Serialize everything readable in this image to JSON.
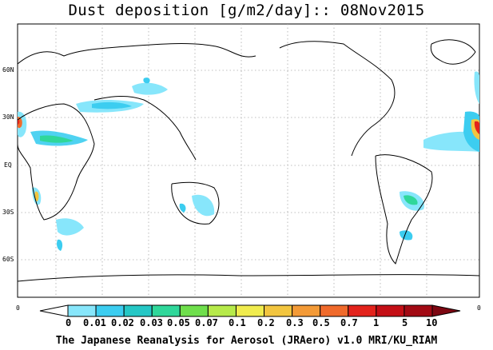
{
  "title": "Dust deposition [g/m2/day]:: 08Nov2015",
  "lat_labels": [
    "60N",
    "30N",
    "EQ",
    "30S",
    "60S"
  ],
  "axis_zero_left": "0",
  "axis_zero_right": "0",
  "colorbar": {
    "labels": [
      "0",
      "0.01",
      "0.02",
      "0.03",
      "0.05",
      "0.07",
      "0.1",
      "0.2",
      "0.3",
      "0.5",
      "0.7",
      "1",
      "5",
      "10"
    ],
    "colors": [
      "#ffffff",
      "#87e6fb",
      "#3ccdf0",
      "#25c7c5",
      "#2fd79a",
      "#6fdf4c",
      "#b6ea4a",
      "#f0ec4e",
      "#f2c53f",
      "#f39a37",
      "#f06a2b",
      "#e3231c",
      "#c40f16",
      "#a20a14",
      "#7d0712"
    ]
  },
  "footer": "The Japanese Reanalysis for Aerosol (JRAero) v1.0 MRI/KU_RIAM"
}
